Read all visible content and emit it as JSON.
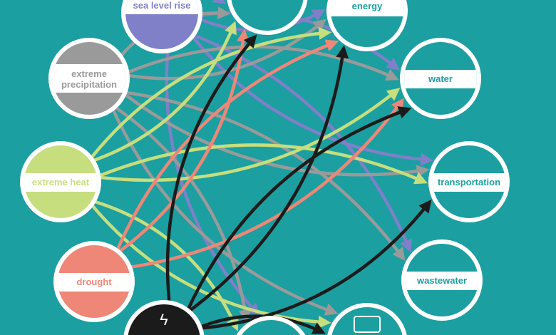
{
  "colors": {
    "background": "#1b9fa1",
    "sea_level_rise": "#7f80c8",
    "extreme_precipitation": "#9a9a9a",
    "extreme_heat": "#c6de7e",
    "drought": "#ee8777",
    "outage": "#1b1b1b",
    "label_text": "#1b9fa1"
  },
  "nodes": {
    "slr": {
      "label": "sea level rise",
      "kind": "hazard",
      "icon": "water-level-icon"
    },
    "precip": {
      "label": "extreme precipitation",
      "kind": "hazard",
      "icon": "rain-cloud-icon"
    },
    "heat": {
      "label": "extreme heat",
      "kind": "hazard",
      "icon": "sun-icon"
    },
    "drought": {
      "label": "drought",
      "kind": "hazard",
      "icon": "cracked-ground-icon"
    },
    "outage": {
      "label": "",
      "kind": "hazard",
      "icon": "lightning-icon"
    },
    "stormwater": {
      "label": "",
      "kind": "system",
      "icon": "drain-icon"
    },
    "energy": {
      "label": "energy",
      "kind": "system",
      "icon": "power-tower-icon"
    },
    "water": {
      "label": "water",
      "kind": "system",
      "icon": "faucet-icon"
    },
    "transportation": {
      "label": "transportation",
      "kind": "system",
      "icon": "train-icon"
    },
    "wastewater": {
      "label": "wastewater",
      "kind": "system",
      "icon": "pipe-icon"
    },
    "communications": {
      "label": "",
      "kind": "system",
      "icon": "monitor-icon"
    },
    "bottom": {
      "label": "",
      "kind": "system",
      "icon": ""
    }
  },
  "edges": [
    [
      "slr",
      "stormwater"
    ],
    [
      "slr",
      "energy"
    ],
    [
      "slr",
      "water"
    ],
    [
      "slr",
      "transportation"
    ],
    [
      "slr",
      "wastewater"
    ],
    [
      "slr",
      "bottom"
    ],
    [
      "precip",
      "stormwater"
    ],
    [
      "precip",
      "energy"
    ],
    [
      "precip",
      "water"
    ],
    [
      "precip",
      "transportation"
    ],
    [
      "precip",
      "wastewater"
    ],
    [
      "precip",
      "communications"
    ],
    [
      "precip",
      "bottom"
    ],
    [
      "heat",
      "stormwater"
    ],
    [
      "heat",
      "energy"
    ],
    [
      "heat",
      "water"
    ],
    [
      "heat",
      "transportation"
    ],
    [
      "heat",
      "communications"
    ],
    [
      "heat",
      "bottom"
    ],
    [
      "drought",
      "stormwater"
    ],
    [
      "drought",
      "energy"
    ],
    [
      "drought",
      "water"
    ],
    [
      "outage",
      "stormwater"
    ],
    [
      "outage",
      "energy"
    ],
    [
      "outage",
      "water"
    ],
    [
      "outage",
      "transportation"
    ],
    [
      "outage",
      "communications"
    ]
  ]
}
